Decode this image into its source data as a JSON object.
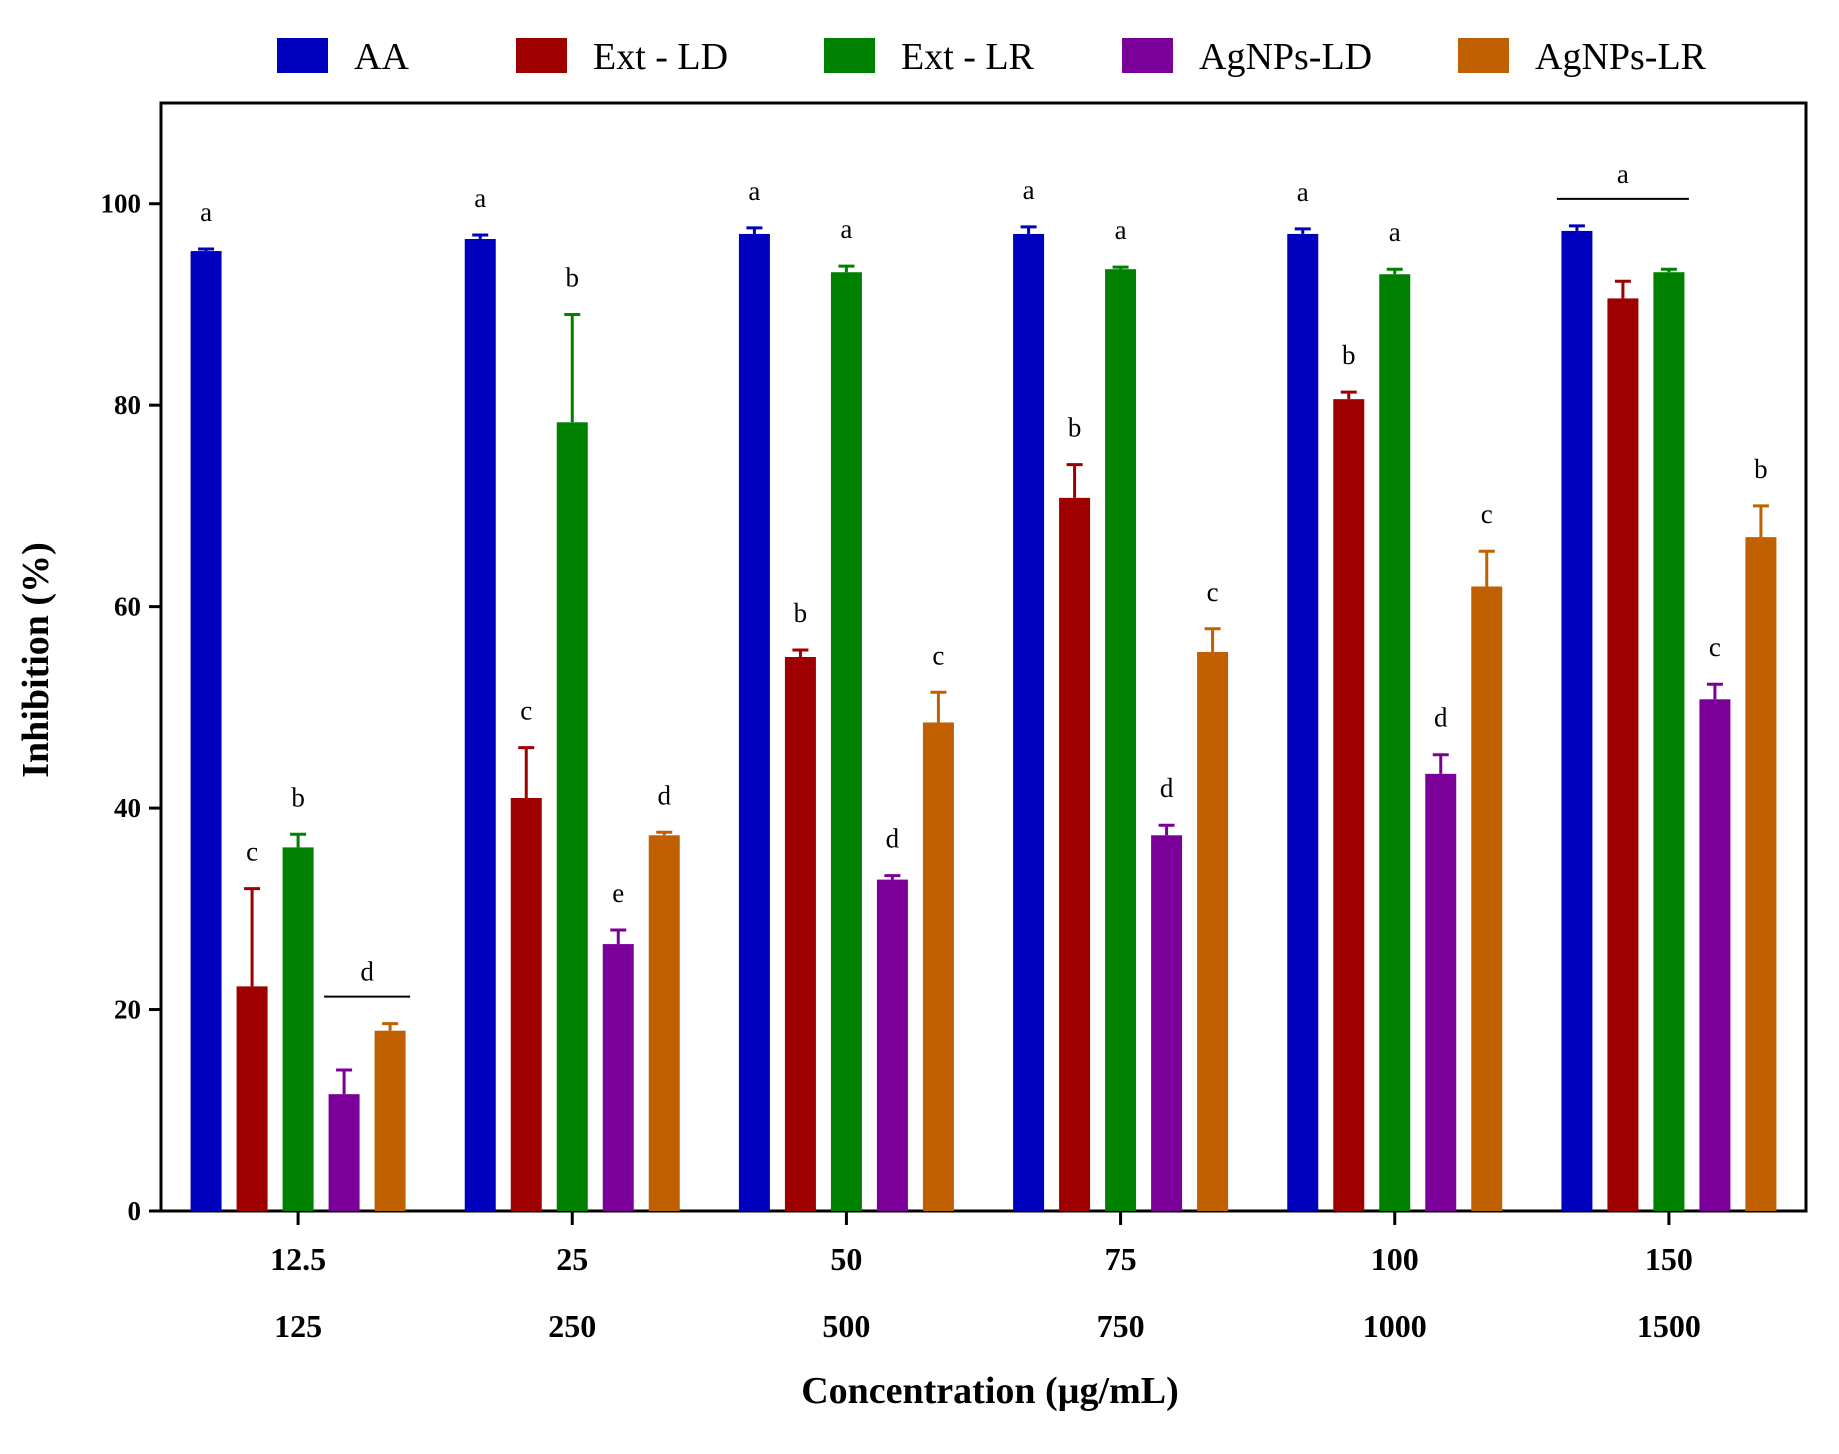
{
  "chart_data": {
    "type": "bar",
    "title": "",
    "xlabel": "Concentration (µg/mL)",
    "ylabel": "Inhibition (%)",
    "ylim": [
      0,
      110
    ],
    "yticks": [
      0,
      20,
      40,
      60,
      80,
      100
    ],
    "grid": false,
    "legend_position": "top",
    "categories": [
      "12.5",
      "25",
      "50",
      "75",
      "100",
      "150"
    ],
    "categories_secondary": [
      "125",
      "250",
      "500",
      "750",
      "1000",
      "1500"
    ],
    "series": [
      {
        "name": "AA",
        "color": "#0000bf",
        "values": [
          95.3,
          96.5,
          97.0,
          97.0,
          97.0,
          97.3
        ],
        "errors": [
          0.2,
          0.4,
          0.6,
          0.7,
          0.5,
          0.5
        ],
        "letters": [
          "a",
          "a",
          "a",
          "a",
          "a",
          ""
        ]
      },
      {
        "name": "Ext - LD",
        "color": "#9e0000",
        "values": [
          22.3,
          41.0,
          55.0,
          70.8,
          80.6,
          90.6
        ],
        "errors": [
          9.7,
          5.0,
          0.7,
          3.3,
          0.7,
          1.7
        ],
        "letters": [
          "c",
          "c",
          "b",
          "b",
          "b",
          ""
        ]
      },
      {
        "name": "Ext - LR",
        "color": "#008000",
        "values": [
          36.1,
          78.3,
          93.2,
          93.5,
          93.0,
          93.2
        ],
        "errors": [
          1.3,
          10.7,
          0.6,
          0.2,
          0.5,
          0.3
        ],
        "letters": [
          "b",
          "b",
          "a",
          "a",
          "a",
          ""
        ]
      },
      {
        "name": "AgNPs-LD",
        "color": "#7b0099",
        "values": [
          11.6,
          26.5,
          32.9,
          37.3,
          43.4,
          50.8
        ],
        "errors": [
          2.4,
          1.4,
          0.4,
          1.0,
          1.9,
          1.5
        ],
        "letters": [
          "",
          "e",
          "d",
          "d",
          "d",
          "c"
        ]
      },
      {
        "name": "AgNPs-LR",
        "color": "#c06000",
        "values": [
          17.9,
          37.3,
          48.5,
          55.5,
          62.0,
          66.9
        ],
        "errors": [
          0.7,
          0.3,
          3.0,
          2.3,
          3.5,
          3.1
        ],
        "letters": [
          "",
          "d",
          "c",
          "c",
          "c",
          "b"
        ]
      }
    ],
    "group_annotations": [
      {
        "category_index": 0,
        "from_series": 3,
        "to_series": 4,
        "letter": "d"
      },
      {
        "category_index": 5,
        "from_series": 0,
        "to_series": 2,
        "letter": "a"
      }
    ]
  }
}
